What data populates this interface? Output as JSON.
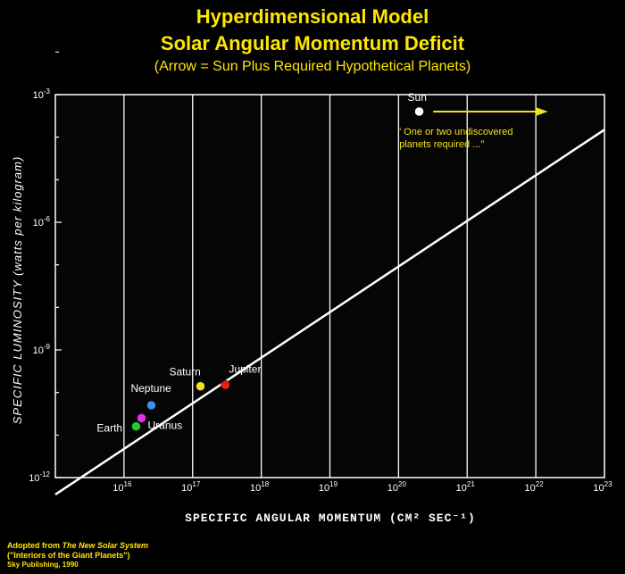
{
  "chart_data": {
    "type": "scatter",
    "title": "Hyperdimensional Model",
    "subtitle": "Solar Angular Momentum Deficit",
    "caption": "(Arrow = Sun Plus Required Hypothetical Planets)",
    "xlabel": "SPECIFIC ANGULAR MOMENTUM (CM² SEC⁻¹)",
    "ylabel": "SPECIFIC LUMINOSITY (watts per kilogram)",
    "x_scale": "log",
    "y_scale": "log",
    "xlim": [
      1000000000000000.0,
      1e+23
    ],
    "ylim": [
      1e-12,
      0.001
    ],
    "x_ticks": [
      {
        "value": 1e+16,
        "base": "10",
        "exp": "16"
      },
      {
        "value": 1e+17,
        "base": "10",
        "exp": "17"
      },
      {
        "value": 1e+18,
        "base": "10",
        "exp": "18"
      },
      {
        "value": 1e+19,
        "base": "10",
        "exp": "19"
      },
      {
        "value": 1e+20,
        "base": "10",
        "exp": "20"
      },
      {
        "value": 1e+21,
        "base": "10",
        "exp": "21"
      },
      {
        "value": 1e+22,
        "base": "10",
        "exp": "22"
      },
      {
        "value": 1e+23,
        "base": "10",
        "exp": "23"
      }
    ],
    "y_ticks": [
      {
        "value": 1e-12,
        "base": "10",
        "exp": "-12"
      },
      {
        "value": 1e-09,
        "base": "10",
        "exp": "-9"
      },
      {
        "value": 1e-06,
        "base": "10",
        "exp": "-6"
      },
      {
        "value": 0.001,
        "base": "10",
        "exp": "-3"
      }
    ],
    "grid": "vertical",
    "points": [
      {
        "name": "Sun",
        "x": 2e+20,
        "y": 0.0004,
        "color": "#ffffff"
      },
      {
        "name": "Jupiter",
        "x": 3e+17,
        "y": 1.5e-10,
        "color": "#e81c1c"
      },
      {
        "name": "Saturn",
        "x": 1.3e+17,
        "y": 1.4e-10,
        "color": "#f2e21a"
      },
      {
        "name": "Neptune",
        "x": 2.5e+16,
        "y": 5e-11,
        "color": "#3b8ff0"
      },
      {
        "name": "Uranus",
        "x": 1.8e+16,
        "y": 2.5e-11,
        "color": "#e62ee6"
      },
      {
        "name": "Earth",
        "x": 1.5e+16,
        "y": 1.6e-11,
        "color": "#22cc22"
      }
    ],
    "trend_line": [
      {
        "x": 1000000000000000.0,
        "y": 4e-13
      },
      {
        "x": 1e+23,
        "y": 0.00015
      }
    ],
    "arrow": {
      "from": {
        "x": 3.2e+20,
        "y": 0.0004
      },
      "to": {
        "x": 1.5e+22,
        "y": 0.0004
      },
      "color": "#f2e21a"
    },
    "annotation": "\" One or two undiscovered planets required ...\""
  },
  "credits": {
    "line1_prefix": "Adopted from ",
    "line1_title": "The New Solar System",
    "line2": "(\"Interiors of the Giant Planets\")",
    "line3": "Sky Publishing, 1990"
  }
}
